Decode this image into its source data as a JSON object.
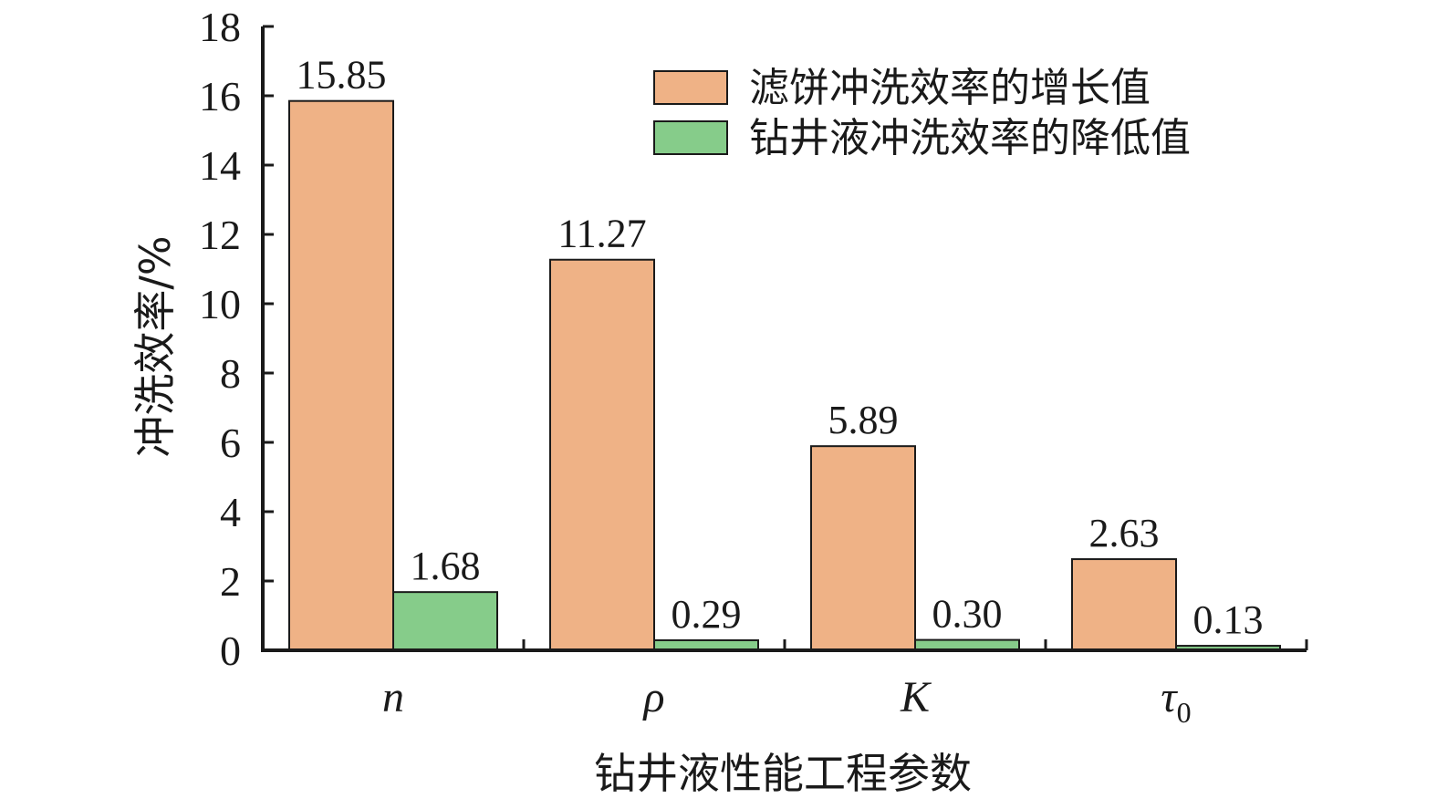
{
  "chart_data": {
    "type": "bar",
    "title": "",
    "xlabel": "钻井液性能工程参数",
    "ylabel": "冲洗效率/%",
    "ylim": [
      0,
      18
    ],
    "yticks": [
      0,
      2,
      4,
      6,
      8,
      10,
      12,
      14,
      16,
      18
    ],
    "categories": [
      {
        "main": "n",
        "sub": ""
      },
      {
        "main": "ρ",
        "sub": ""
      },
      {
        "main": "K",
        "sub": ""
      },
      {
        "main": "τ",
        "sub": "0"
      }
    ],
    "series": [
      {
        "name": "滤饼冲洗效率的增长值",
        "color": "#efb286",
        "values": [
          15.85,
          11.27,
          5.89,
          2.63
        ],
        "labels": [
          "15.85",
          "11.27",
          "5.89",
          "2.63"
        ]
      },
      {
        "name": "钻井液冲洗效率的降低值",
        "color": "#86cc8a",
        "values": [
          1.68,
          0.29,
          0.3,
          0.13
        ],
        "labels": [
          "1.68",
          "0.29",
          "0.30",
          "0.13"
        ]
      }
    ],
    "legend_position": "top-right",
    "grid": false
  }
}
